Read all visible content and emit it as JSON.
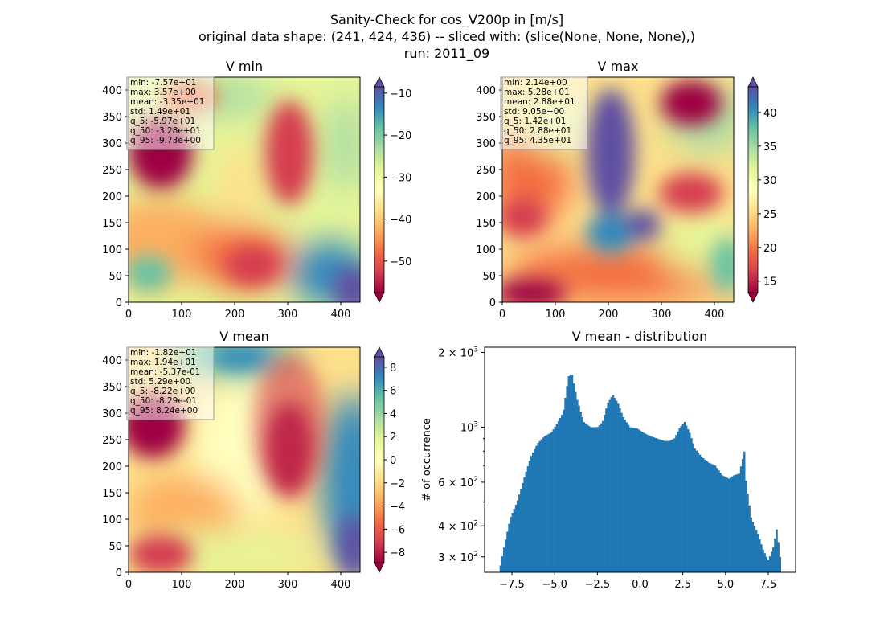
{
  "suptitle": [
    "Sanity-Check for cos_V200p in [m/s]",
    "original data shape: (241, 424, 436) -- sliced with: (slice(None, None, None),)",
    "run: 2011_09"
  ],
  "colors": {
    "spectral": [
      "#9e0142",
      "#d53e4f",
      "#f46d43",
      "#fdae61",
      "#fee08b",
      "#ffffbf",
      "#e6f598",
      "#abdda4",
      "#66c2a5",
      "#3288bd",
      "#5e4fa2"
    ],
    "hist_bar": "#1f77b4"
  },
  "panels": [
    {
      "title": "V min",
      "x_ticks": [
        "0",
        "100",
        "200",
        "300",
        "400"
      ],
      "y_ticks": [
        "0",
        "50",
        "100",
        "150",
        "200",
        "250",
        "300",
        "350",
        "400"
      ],
      "colorbar": {
        "range": [
          -57.5,
          -8.5
        ],
        "ticks": [
          "−10",
          "−20",
          "−30",
          "−40",
          "−50"
        ],
        "tick_values": [
          -10,
          -20,
          -30,
          -40,
          -50
        ]
      },
      "stats": [
        "min: -7.57e+01",
        "max: 3.57e+00",
        "mean: -3.35e+01",
        "std: 1.49e+01",
        "q_5: -5.97e+01",
        "q_50: -3.28e+01",
        "q_95: -9.73e+00"
      ]
    },
    {
      "title": "V max",
      "x_ticks": [
        "0",
        "100",
        "200",
        "300",
        "400"
      ],
      "y_ticks": [
        "0",
        "50",
        "100",
        "150",
        "200",
        "250",
        "300",
        "350",
        "400"
      ],
      "colorbar": {
        "range": [
          13.3,
          43.8
        ],
        "ticks": [
          "15",
          "20",
          "25",
          "30",
          "35",
          "40"
        ],
        "tick_values": [
          15,
          20,
          25,
          30,
          35,
          40
        ]
      },
      "stats": [
        "min: 2.14e+00",
        "max: 5.28e+01",
        "mean: 2.88e+01",
        "std: 9.05e+00",
        "q_5: 1.42e+01",
        "q_50: 2.88e+01",
        "q_95: 4.35e+01"
      ]
    },
    {
      "title": "V mean",
      "x_ticks": [
        "0",
        "100",
        "200",
        "300",
        "400"
      ],
      "y_ticks": [
        "0",
        "50",
        "100",
        "150",
        "200",
        "250",
        "300",
        "350",
        "400"
      ],
      "colorbar": {
        "range": [
          -8.9,
          8.9
        ],
        "ticks": [
          "8",
          "6",
          "4",
          "2",
          "0",
          "−2",
          "−4",
          "−6",
          "−8"
        ],
        "tick_values": [
          8,
          6,
          4,
          2,
          0,
          -2,
          -4,
          -6,
          -8
        ]
      },
      "stats": [
        "min: -1.82e+01",
        "max: 1.94e+01",
        "mean: -5.37e-01",
        "std: 5.29e+00",
        "q_5: -8.22e+00",
        "q_50: -8.29e-01",
        "q_95: 8.24e+00"
      ]
    }
  ],
  "chart_data": [
    {
      "type": "heatmap",
      "title": "V min",
      "x_range": [
        0,
        436
      ],
      "y_range": [
        0,
        424
      ],
      "colormap": "Spectral",
      "value_range": [
        -57.5,
        -8.5
      ]
    },
    {
      "type": "heatmap",
      "title": "V max",
      "x_range": [
        0,
        436
      ],
      "y_range": [
        0,
        424
      ],
      "colormap": "Spectral",
      "value_range": [
        13.3,
        43.8
      ]
    },
    {
      "type": "heatmap",
      "title": "V mean",
      "x_range": [
        0,
        436
      ],
      "y_range": [
        0,
        424
      ],
      "colormap": "Spectral",
      "value_range": [
        -8.9,
        8.9
      ]
    },
    {
      "type": "bar",
      "title": "V mean - distribution",
      "ylabel": "# of occurrence",
      "yscale": "log",
      "xlim": [
        -9.1,
        9.1
      ],
      "ylim": [
        260,
        2100
      ],
      "x_ticks": [
        "−7.5",
        "−5.0",
        "−2.5",
        "0.0",
        "2.5",
        "5.0",
        "7.5"
      ],
      "x_tick_values": [
        -7.5,
        -5.0,
        -2.5,
        0.0,
        2.5,
        5.0,
        7.5
      ],
      "y_tick_labels": [
        {
          "value": 2000,
          "base": "2 × 10",
          "exp": "3"
        },
        {
          "value": 1000,
          "base": "10",
          "exp": "3"
        },
        {
          "value": 600,
          "base": "6 × 10",
          "exp": "2"
        },
        {
          "value": 400,
          "base": "4 × 10",
          "exp": "2"
        },
        {
          "value": 300,
          "base": "3 × 10",
          "exp": "2"
        }
      ],
      "bin_range": [
        -8.22,
        8.24
      ],
      "curve_points": [
        [
          -8.2,
          270
        ],
        [
          -8.0,
          320
        ],
        [
          -7.6,
          430
        ],
        [
          -7.2,
          500
        ],
        [
          -6.8,
          620
        ],
        [
          -6.4,
          760
        ],
        [
          -6.0,
          860
        ],
        [
          -5.6,
          920
        ],
        [
          -5.2,
          950
        ],
        [
          -4.8,
          1050
        ],
        [
          -4.5,
          1150
        ],
        [
          -4.2,
          1600
        ],
        [
          -4.0,
          1650
        ],
        [
          -3.7,
          1300
        ],
        [
          -3.3,
          1050
        ],
        [
          -2.9,
          1000
        ],
        [
          -2.5,
          1000
        ],
        [
          -2.2,
          1050
        ],
        [
          -1.9,
          1250
        ],
        [
          -1.6,
          1350
        ],
        [
          -1.3,
          1250
        ],
        [
          -1.0,
          1100
        ],
        [
          -0.6,
          1000
        ],
        [
          -0.2,
          990
        ],
        [
          0.2,
          950
        ],
        [
          0.6,
          920
        ],
        [
          1.0,
          900
        ],
        [
          1.4,
          880
        ],
        [
          1.7,
          880
        ],
        [
          2.0,
          900
        ],
        [
          2.3,
          990
        ],
        [
          2.6,
          1050
        ],
        [
          2.9,
          950
        ],
        [
          3.2,
          820
        ],
        [
          3.6,
          760
        ],
        [
          4.0,
          720
        ],
        [
          4.4,
          700
        ],
        [
          4.8,
          640
        ],
        [
          5.2,
          620
        ],
        [
          5.5,
          640
        ],
        [
          5.8,
          650
        ],
        [
          6.1,
          800
        ],
        [
          6.2,
          600
        ],
        [
          6.5,
          430
        ],
        [
          6.9,
          370
        ],
        [
          7.2,
          320
        ],
        [
          7.5,
          290
        ],
        [
          7.8,
          330
        ],
        [
          8.0,
          390
        ],
        [
          8.24,
          280
        ]
      ]
    }
  ]
}
